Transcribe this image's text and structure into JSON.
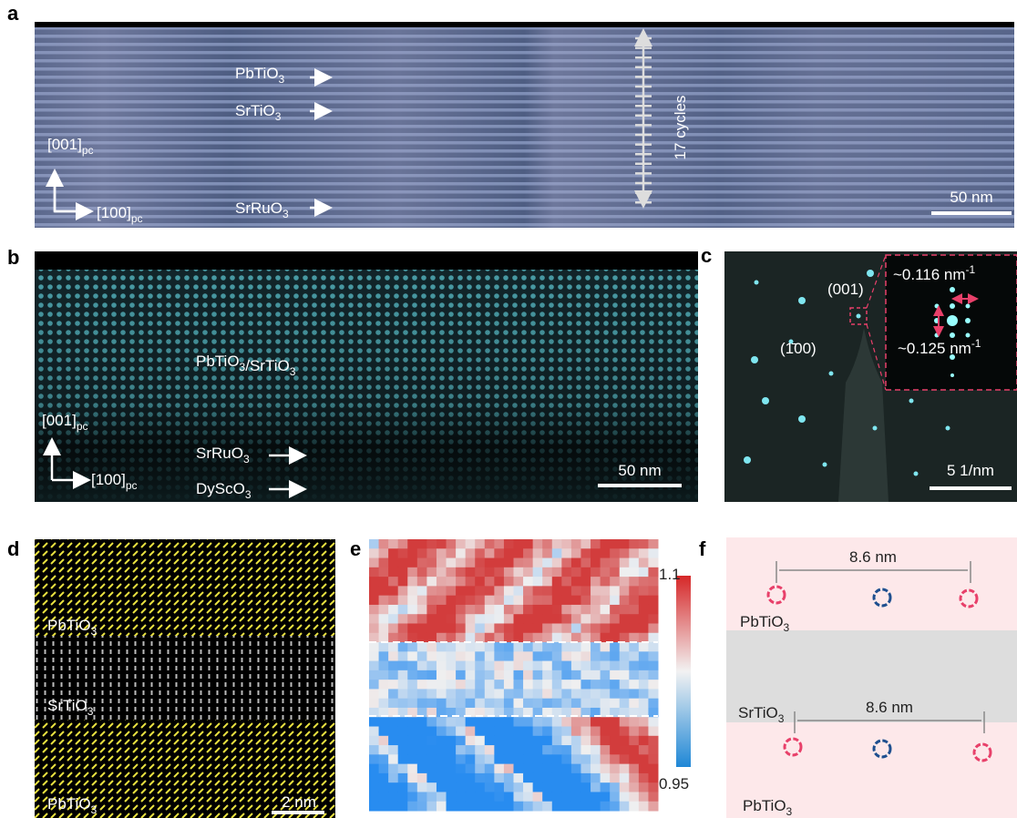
{
  "panel_a": {
    "letter": "a",
    "texts": [
      [
        {
          "text": "PbTiO",
          "sub": "3"
        }
      ],
      [
        {
          "text": "SrTiO",
          "sub": "3"
        }
      ],
      [
        {
          "text": "SrRuO",
          "sub": "3"
        }
      ],
      [
        {
          "text": "[001]",
          "sub": "pc"
        }
      ],
      [
        {
          "text": "[100]",
          "sub": "pc"
        }
      ],
      [
        {
          "text": "17 cycles"
        }
      ],
      [
        {
          "text": "50 nm"
        }
      ]
    ]
  },
  "panel_b": {
    "letter": "b",
    "texts": [
      [
        {
          "text": "PbTiO",
          "sub": "3"
        },
        {
          "text": "/SrTiO",
          "sub": "3"
        }
      ],
      [
        {
          "text": "[001]",
          "sub": "pc"
        }
      ],
      [
        {
          "text": "[100]",
          "sub": "pc"
        }
      ],
      [
        {
          "text": "SrRuO",
          "sub": "3"
        }
      ],
      [
        {
          "text": "DyScO",
          "sub": "3"
        }
      ],
      [
        {
          "text": "50 nm"
        }
      ]
    ]
  },
  "panel_c": {
    "letter": "c",
    "texts": [
      [
        {
          "text": "(001)"
        }
      ],
      [
        {
          "text": "(1̄00)"
        }
      ],
      [
        {
          "text": "~0.116 nm",
          "sup": "-1"
        }
      ],
      [
        {
          "text": "~0.125 nm",
          "sup": "-1"
        }
      ],
      [
        {
          "text": "5 1/nm"
        }
      ]
    ]
  },
  "panel_d": {
    "letter": "d",
    "texts": [
      [
        {
          "text": "PbTiO",
          "sub": "3"
        }
      ],
      [
        {
          "text": "SrTiO",
          "sub": "3"
        }
      ],
      [
        {
          "text": "PbTiO",
          "sub": "3"
        }
      ],
      [
        {
          "text": "2 nm"
        }
      ]
    ]
  },
  "panel_e": {
    "letter": "e",
    "colorbar": {
      "max": 1.1,
      "min": 0.95
    }
  },
  "panel_f": {
    "letter": "f",
    "texts": [
      [
        {
          "text": "8.6 nm"
        }
      ],
      [
        {
          "text": "PbTiO",
          "sub": "3"
        }
      ],
      [
        {
          "text": "SrTiO",
          "sub": "3"
        }
      ],
      [
        {
          "text": "8.6 nm"
        }
      ],
      [
        {
          "text": "PbTiO",
          "sub": "3"
        }
      ]
    ]
  }
}
